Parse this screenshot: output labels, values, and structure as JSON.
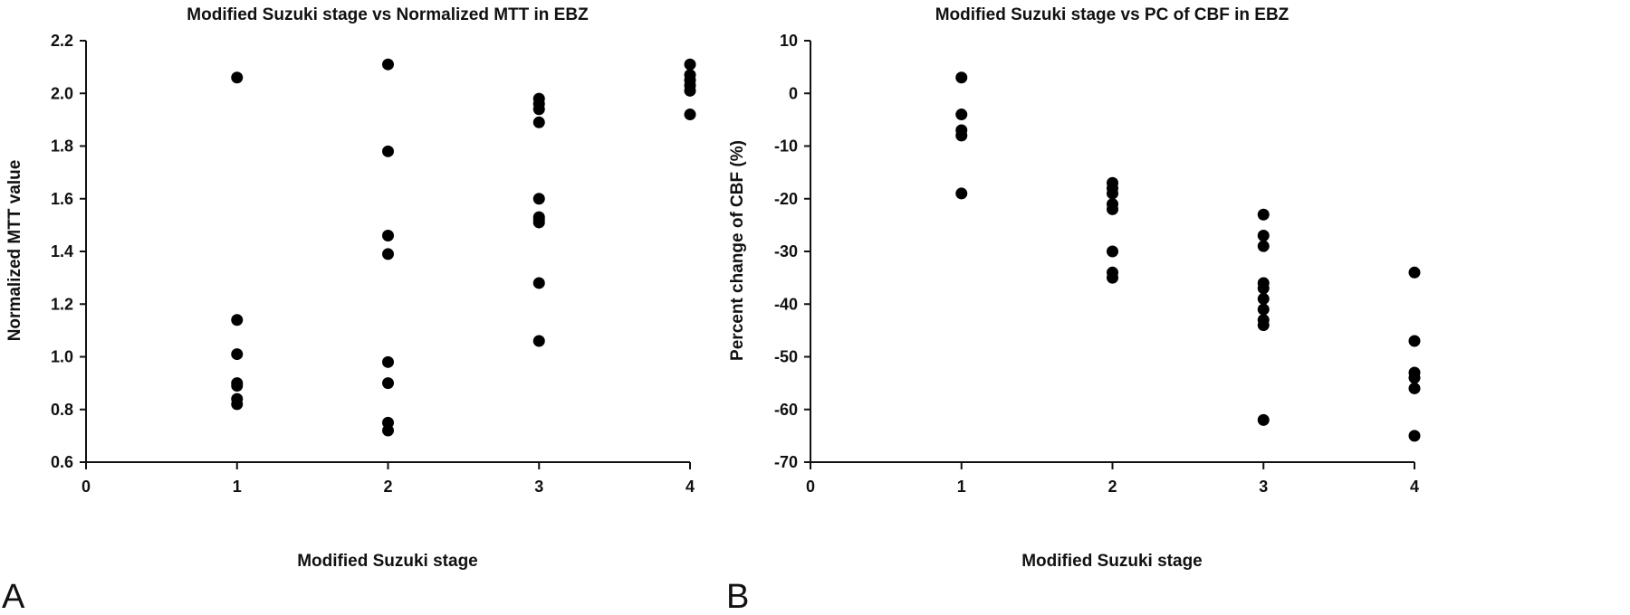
{
  "chart_data": [
    {
      "type": "scatter",
      "panel_letter": "A",
      "title": "Modified Suzuki stage vs Normalized MTT in EBZ",
      "xlabel": "Modified Suzuki stage",
      "ylabel": "Normalized MTT value",
      "xlim": [
        0,
        4
      ],
      "ylim": [
        0.6,
        2.2
      ],
      "xticks": [
        0,
        1,
        2,
        3,
        4
      ],
      "xtick_labels": [
        "0",
        "1",
        "2",
        "3",
        "4"
      ],
      "yticks": [
        0.6,
        0.8,
        1.0,
        1.2,
        1.4,
        1.6,
        1.8,
        2.0,
        2.2
      ],
      "ytick_labels": [
        "0.6",
        "0.8",
        "1.0",
        "1.2",
        "1.4",
        "1.6",
        "1.8",
        "2.0",
        "2.2"
      ],
      "grid": false,
      "points": [
        {
          "x": 1,
          "y": 2.06
        },
        {
          "x": 1,
          "y": 1.14
        },
        {
          "x": 1,
          "y": 1.01
        },
        {
          "x": 1,
          "y": 0.9
        },
        {
          "x": 1,
          "y": 0.89
        },
        {
          "x": 1,
          "y": 0.84
        },
        {
          "x": 1,
          "y": 0.82
        },
        {
          "x": 2,
          "y": 2.11
        },
        {
          "x": 2,
          "y": 1.78
        },
        {
          "x": 2,
          "y": 1.46
        },
        {
          "x": 2,
          "y": 1.39
        },
        {
          "x": 2,
          "y": 0.98
        },
        {
          "x": 2,
          "y": 0.9
        },
        {
          "x": 2,
          "y": 0.75
        },
        {
          "x": 2,
          "y": 0.72
        },
        {
          "x": 3,
          "y": 1.98
        },
        {
          "x": 3,
          "y": 1.96
        },
        {
          "x": 3,
          "y": 1.94
        },
        {
          "x": 3,
          "y": 1.89
        },
        {
          "x": 3,
          "y": 1.6
        },
        {
          "x": 3,
          "y": 1.53
        },
        {
          "x": 3,
          "y": 1.52
        },
        {
          "x": 3,
          "y": 1.51
        },
        {
          "x": 3,
          "y": 1.28
        },
        {
          "x": 3,
          "y": 1.06
        },
        {
          "x": 4,
          "y": 2.11
        },
        {
          "x": 4,
          "y": 2.07
        },
        {
          "x": 4,
          "y": 2.05
        },
        {
          "x": 4,
          "y": 2.03
        },
        {
          "x": 4,
          "y": 2.01
        },
        {
          "x": 4,
          "y": 1.92
        }
      ]
    },
    {
      "type": "scatter",
      "panel_letter": "B",
      "title": "Modified Suzuki stage vs PC of CBF in EBZ",
      "xlabel": "Modified Suzuki stage",
      "ylabel": "Percent change of CBF (%)",
      "xlim": [
        0,
        4
      ],
      "ylim": [
        -70,
        10
      ],
      "xticks": [
        0,
        1,
        2,
        3,
        4
      ],
      "xtick_labels": [
        "0",
        "1",
        "2",
        "3",
        "4"
      ],
      "yticks": [
        -70,
        -60,
        -50,
        -40,
        -30,
        -20,
        -10,
        0,
        10
      ],
      "ytick_labels": [
        "-70",
        "-60",
        "-50",
        "-40",
        "-30",
        "-20",
        "-10",
        "0",
        "10"
      ],
      "grid": false,
      "points": [
        {
          "x": 1,
          "y": 3
        },
        {
          "x": 1,
          "y": -4
        },
        {
          "x": 1,
          "y": -7
        },
        {
          "x": 1,
          "y": -8
        },
        {
          "x": 1,
          "y": -19
        },
        {
          "x": 2,
          "y": -17
        },
        {
          "x": 2,
          "y": -18
        },
        {
          "x": 2,
          "y": -19
        },
        {
          "x": 2,
          "y": -21
        },
        {
          "x": 2,
          "y": -22
        },
        {
          "x": 2,
          "y": -30
        },
        {
          "x": 2,
          "y": -34
        },
        {
          "x": 2,
          "y": -35
        },
        {
          "x": 3,
          "y": -23
        },
        {
          "x": 3,
          "y": -27
        },
        {
          "x": 3,
          "y": -29
        },
        {
          "x": 3,
          "y": -36
        },
        {
          "x": 3,
          "y": -37
        },
        {
          "x": 3,
          "y": -39
        },
        {
          "x": 3,
          "y": -41
        },
        {
          "x": 3,
          "y": -43
        },
        {
          "x": 3,
          "y": -44
        },
        {
          "x": 3,
          "y": -62
        },
        {
          "x": 4,
          "y": -34
        },
        {
          "x": 4,
          "y": -47
        },
        {
          "x": 4,
          "y": -53
        },
        {
          "x": 4,
          "y": -54
        },
        {
          "x": 4,
          "y": -56
        },
        {
          "x": 4,
          "y": -65
        }
      ]
    }
  ]
}
